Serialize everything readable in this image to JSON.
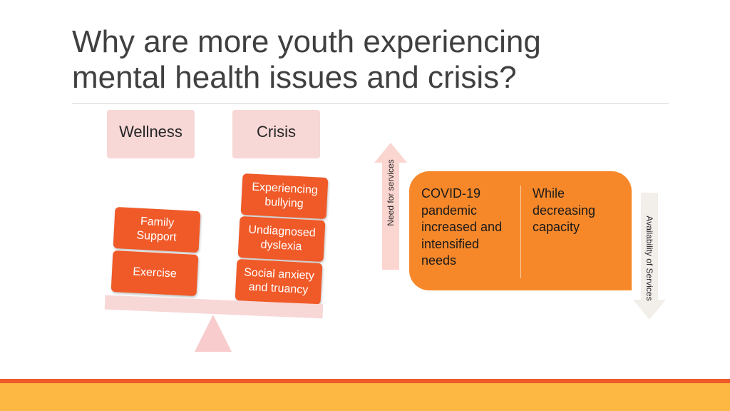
{
  "slide": {
    "title_line1": "Why are more youth experiencing",
    "title_line2": "mental health issues and crisis?"
  },
  "scale": {
    "left_label": "Wellness",
    "right_label": "Crisis",
    "left_items": [
      "Family Support",
      "Exercise"
    ],
    "right_items": [
      "Experiencing bullying",
      "Undiagnosed dyslexia",
      "Social anxiety and truancy"
    ]
  },
  "arrows": {
    "need_label": "Need for services",
    "availability_label": "Availability of Services"
  },
  "card": {
    "left_text": "COVID-19 pandemic increased and intensified needs",
    "right_text": "While decreasing capacity"
  },
  "colors": {
    "accent": "#f05a28",
    "card": "#f7882a",
    "pink": "#f8d7d7",
    "footer": "#fdb843"
  }
}
